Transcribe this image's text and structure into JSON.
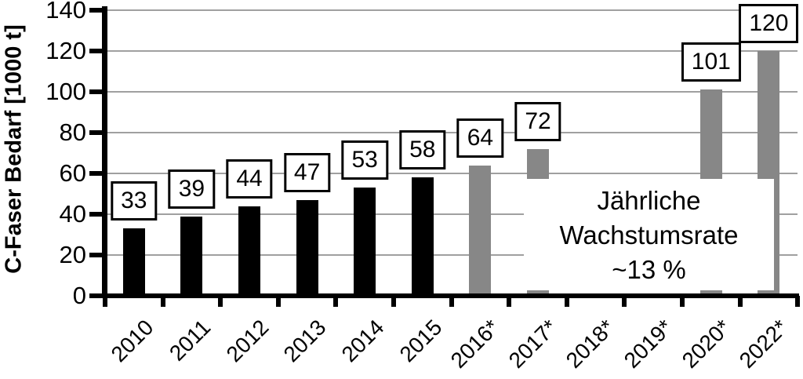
{
  "chart_data": {
    "type": "bar",
    "title": "",
    "ylabel": "C-Faser Bedarf [1000 t]",
    "xlabel": "",
    "ylim": [
      0,
      140
    ],
    "ytick_interval": 20,
    "ytick_labels": [
      "0",
      "20",
      "40",
      "60",
      "80",
      "100",
      "120",
      "140"
    ],
    "grid": "horizontal",
    "legend": "none",
    "categories": [
      "2010",
      "2011",
      "2012",
      "2013",
      "2014",
      "2015",
      "2016*",
      "2017*",
      "2018*",
      "2019*",
      "2020*",
      "2022*"
    ],
    "values": [
      33,
      39,
      44,
      47,
      53,
      58,
      64,
      72,
      null,
      null,
      101,
      120
    ],
    "bar_colors": [
      "#000000",
      "#000000",
      "#000000",
      "#000000",
      "#000000",
      "#000000",
      "#878787",
      "#878787",
      null,
      null,
      "#878787",
      "#878787"
    ],
    "value_label_boxes": [
      "33",
      "39",
      "44",
      "47",
      "53",
      "58",
      "64",
      "72",
      "101",
      "120"
    ],
    "annotation": {
      "lines": [
        "Jährliche",
        "Wachstumsrate",
        "~13 %"
      ]
    },
    "colors": {
      "actual_bar": "#000000",
      "forecast_bar": "#878787",
      "gridline": "#a0a0a0",
      "axis": "#000000",
      "label_box_bg": "#ffffff",
      "label_box_border": "#000000",
      "background": "#ffffff"
    }
  }
}
